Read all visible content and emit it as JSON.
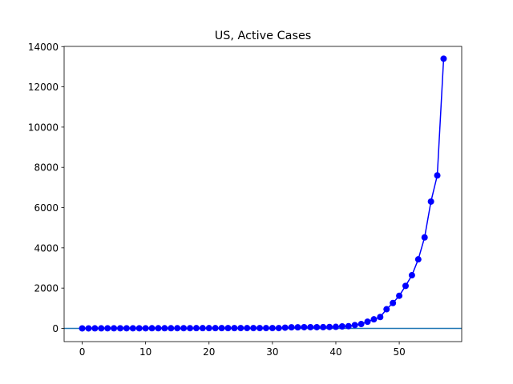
{
  "chart_data": {
    "type": "line",
    "title": "US, Active Cases",
    "xlabel": "",
    "ylabel": "",
    "xlim": [
      -2.85,
      59.85
    ],
    "ylim": [
      -657.15,
      14010
    ],
    "x_ticks": [
      0,
      10,
      20,
      30,
      40,
      50
    ],
    "y_ticks": [
      0,
      2000,
      4000,
      6000,
      8000,
      10000,
      12000,
      14000
    ],
    "grid": false,
    "legend": "none",
    "reference_line": {
      "y": 0,
      "color": "#1f77b4"
    },
    "series": [
      {
        "color": "#0000ff",
        "marker": "circle",
        "x": [
          0,
          1,
          2,
          3,
          4,
          5,
          6,
          7,
          8,
          9,
          10,
          11,
          12,
          13,
          14,
          15,
          16,
          17,
          18,
          19,
          20,
          21,
          22,
          23,
          24,
          25,
          26,
          27,
          28,
          29,
          30,
          31,
          32,
          33,
          34,
          35,
          36,
          37,
          38,
          39,
          40,
          41,
          42,
          43,
          44,
          45,
          46,
          47,
          48,
          49,
          50,
          51,
          52,
          53,
          54,
          55,
          56,
          57
        ],
        "values": [
          1,
          1,
          2,
          2,
          5,
          5,
          5,
          5,
          5,
          6,
          6,
          7,
          8,
          8,
          8,
          11,
          11,
          11,
          12,
          12,
          12,
          12,
          13,
          13,
          13,
          15,
          15,
          15,
          15,
          15,
          15,
          15,
          35,
          53,
          53,
          59,
          59,
          60,
          62,
          70,
          76,
          98,
          109,
          165,
          216,
          331,
          450,
          565,
          952,
          1260,
          1620,
          2110,
          2640,
          3430,
          4520,
          6300,
          7600,
          13400
        ]
      }
    ]
  }
}
